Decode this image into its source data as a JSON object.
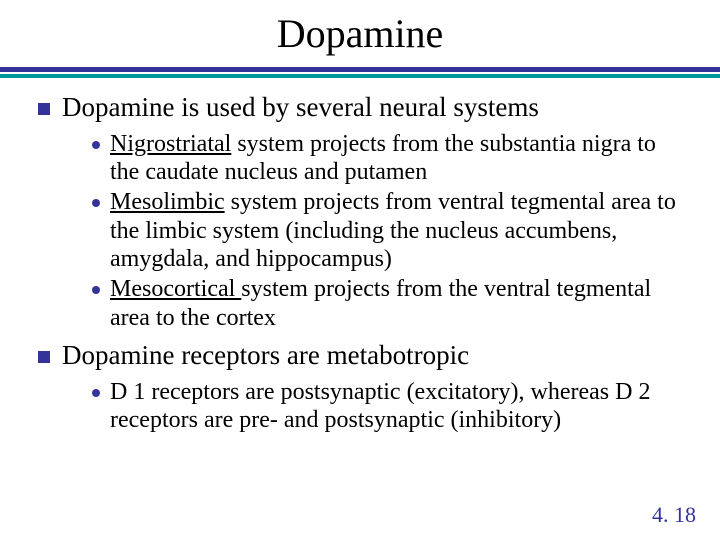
{
  "colors": {
    "bullet": "#333399",
    "rule_top": "#333399",
    "rule_bottom": "#009999",
    "text": "#000000",
    "footer": "#333399",
    "background": "#ffffff"
  },
  "typography": {
    "title_fontsize": 40,
    "l1_fontsize": 27,
    "l2_fontsize": 24,
    "footer_fontsize": 22,
    "font_family": "Times New Roman"
  },
  "title": "Dopamine",
  "footer": "4. 18",
  "bullets": [
    {
      "text": "Dopamine is used by several neural systems",
      "sub": [
        {
          "underline": "Nigrostriatal",
          "rest": " system projects from the substantia nigra to the caudate nucleus and putamen"
        },
        {
          "underline": "Mesolimbic",
          "rest": " system projects from ventral tegmental area to the limbic system (including the nucleus accumbens, amygdala, and hippocampus)"
        },
        {
          "underline": "Mesocortical ",
          "rest": "system projects from the ventral tegmental area to the cortex"
        }
      ]
    },
    {
      "text": "Dopamine receptors are metabotropic",
      "sub": [
        {
          "underline": "",
          "rest": "D 1 receptors are postsynaptic (excitatory), whereas D 2 receptors are pre- and postsynaptic (inhibitory)"
        }
      ]
    }
  ]
}
